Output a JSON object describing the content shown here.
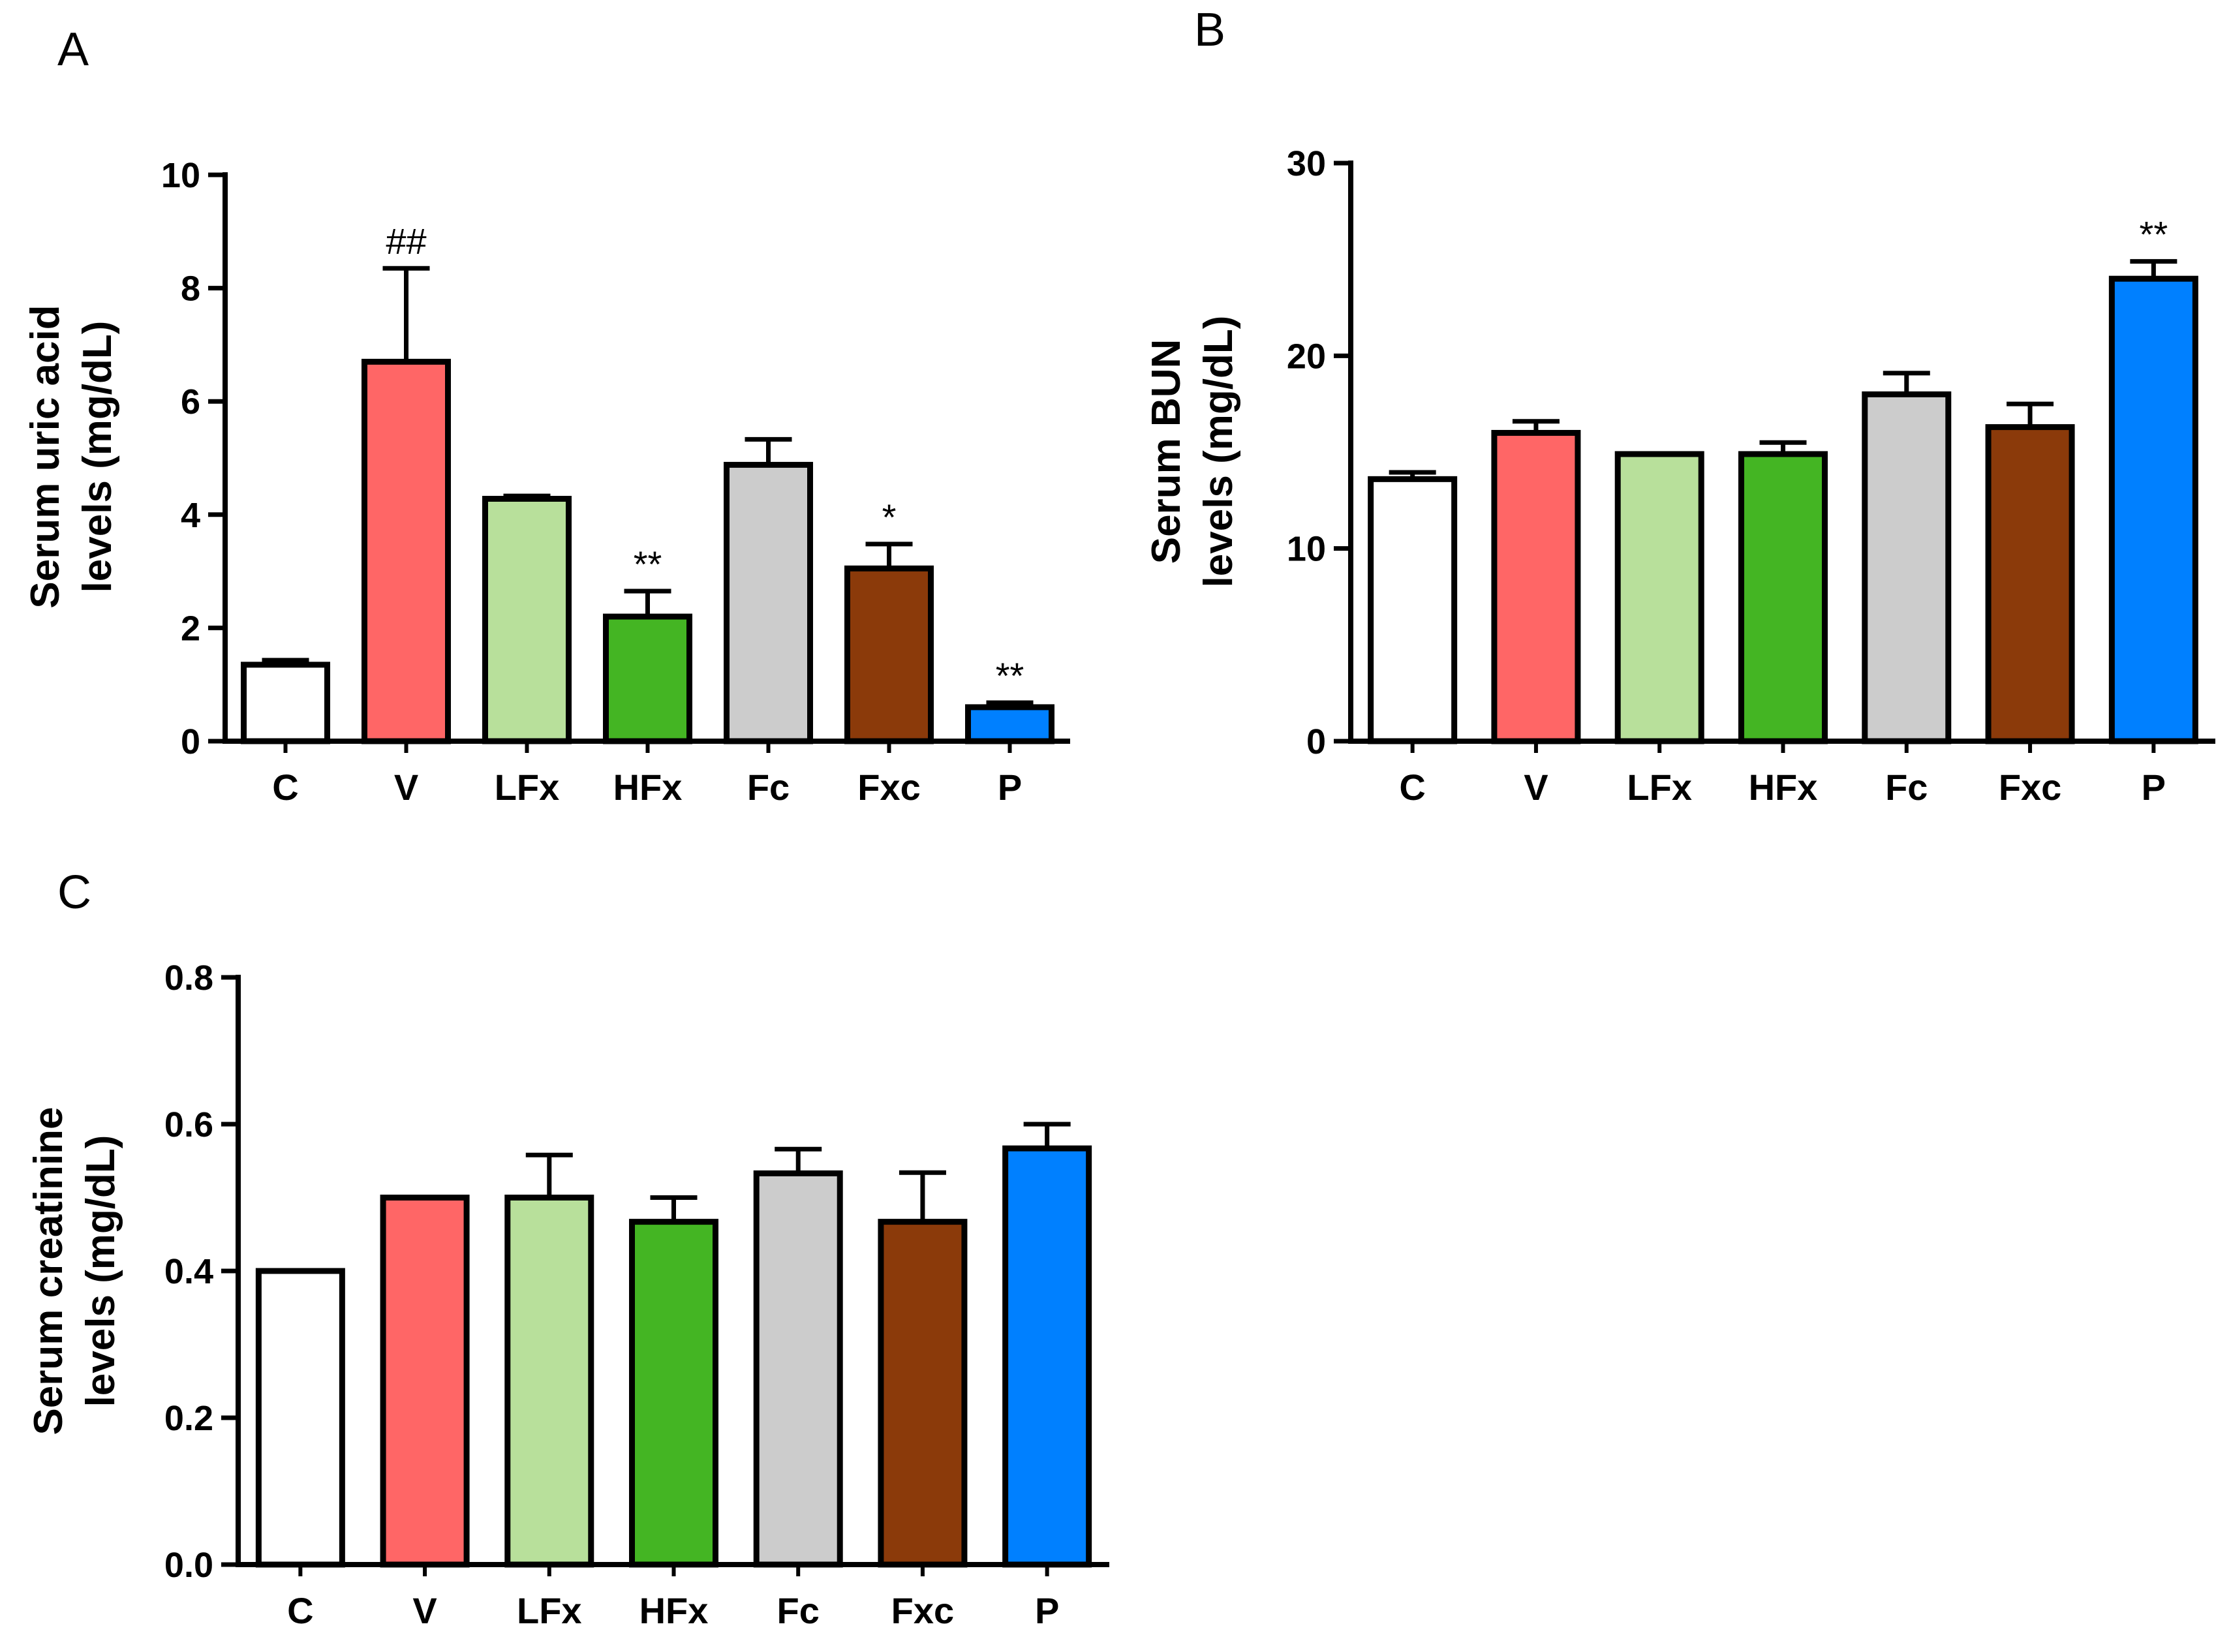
{
  "chart_data": [
    {
      "panel": "A",
      "type": "bar",
      "categories": [
        "C",
        "V",
        "LFx",
        "HFx",
        "Fc",
        "Fxc",
        "P"
      ],
      "values": [
        1.35,
        6.7,
        4.28,
        2.2,
        4.88,
        3.05,
        0.6
      ],
      "errors": [
        0.08,
        1.65,
        0.05,
        0.45,
        0.45,
        0.43,
        0.08
      ],
      "annotations": [
        "",
        "##",
        "",
        "**",
        "",
        "*",
        "**"
      ],
      "colors": [
        "#ffffff",
        "#ff6666",
        "#b8e09b",
        "#44b523",
        "#cccccc",
        "#8b3a0a",
        "#0080ff"
      ],
      "ylabel_lines": [
        "Serum uric acid",
        "levels (mg/dL)"
      ],
      "ylim": [
        0,
        10
      ],
      "yticks": [
        0,
        2,
        4,
        6,
        8,
        10
      ],
      "ytick_labels": [
        "0",
        "2",
        "4",
        "6",
        "8",
        "10"
      ],
      "grid": false
    },
    {
      "panel": "B",
      "type": "bar",
      "categories": [
        "C",
        "V",
        "LFx",
        "HFx",
        "Fc",
        "Fxc",
        "P"
      ],
      "values": [
        13.6,
        16.0,
        14.9,
        14.9,
        18.0,
        16.3,
        24.0
      ],
      "errors": [
        0.35,
        0.6,
        0.0,
        0.6,
        1.1,
        1.2,
        0.9
      ],
      "annotations": [
        "",
        "",
        "",
        "",
        "",
        "",
        "**"
      ],
      "colors": [
        "#ffffff",
        "#ff6666",
        "#b8e09b",
        "#44b523",
        "#cccccc",
        "#8b3a0a",
        "#0080ff"
      ],
      "ylabel_lines": [
        "Serum BUN",
        "levels (mg/dL)"
      ],
      "ylim": [
        0,
        30
      ],
      "yticks": [
        0,
        10,
        20,
        30
      ],
      "ytick_labels": [
        "0",
        "10",
        "20",
        "30"
      ],
      "grid": false
    },
    {
      "panel": "C",
      "type": "bar",
      "categories": [
        "C",
        "V",
        "LFx",
        "HFx",
        "Fc",
        "Fxc",
        "P"
      ],
      "values": [
        0.4,
        0.5,
        0.5,
        0.467,
        0.533,
        0.467,
        0.567
      ],
      "errors": [
        0.0,
        0.0,
        0.058,
        0.033,
        0.033,
        0.067,
        0.033
      ],
      "annotations": [
        "",
        "",
        "",
        "",
        "",
        "",
        ""
      ],
      "colors": [
        "#ffffff",
        "#ff6666",
        "#b8e09b",
        "#44b523",
        "#cccccc",
        "#8b3a0a",
        "#0080ff"
      ],
      "ylabel_lines": [
        "Serum creatinine",
        "levels (mg/dL)"
      ],
      "ylim": [
        0,
        0.8
      ],
      "yticks": [
        0,
        0.2,
        0.4,
        0.6,
        0.8
      ],
      "ytick_labels": [
        "0.0",
        "0.2",
        "0.4",
        "0.6",
        "0.8"
      ],
      "grid": false
    }
  ]
}
